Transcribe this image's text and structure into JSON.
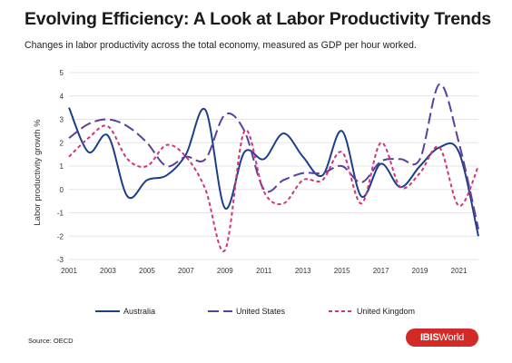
{
  "title": "Evolving Efficiency: A Look at Labor Productivity Trends",
  "subtitle": "Changes in labor productivity across the total economy, measured as GDP per hour worked.",
  "source": "Source: OECD",
  "logo": {
    "bold": "IBIS",
    "regular": "World"
  },
  "chart_data": {
    "type": "line",
    "ylabel": "Labor productivity growth %",
    "xlabel": "",
    "ylim": [
      -3,
      5
    ],
    "xlim": [
      2001,
      2022
    ],
    "y_ticks": [
      -3,
      -2,
      -1,
      0,
      1,
      2,
      3,
      4,
      5
    ],
    "x_ticks": [
      2001,
      2003,
      2005,
      2007,
      2009,
      2011,
      2013,
      2015,
      2017,
      2019,
      2021
    ],
    "grid": "horizontal",
    "legend_position": "bottom",
    "x": [
      2001,
      2002,
      2003,
      2004,
      2005,
      2006,
      2007,
      2008,
      2009,
      2010,
      2011,
      2012,
      2013,
      2014,
      2015,
      2016,
      2017,
      2018,
      2019,
      2020,
      2021,
      2022
    ],
    "series": [
      {
        "name": "Australia",
        "color": "#1b3f8b",
        "style": "solid",
        "values": [
          3.5,
          1.6,
          2.3,
          -0.3,
          0.4,
          0.6,
          1.5,
          3.4,
          -0.8,
          1.6,
          1.3,
          2.4,
          1.4,
          0.6,
          2.5,
          -0.3,
          1.1,
          0.1,
          1.0,
          1.8,
          1.6,
          -2.0
        ]
      },
      {
        "name": "United States",
        "color": "#5b3f9e",
        "style": "long-dash",
        "values": [
          2.2,
          2.8,
          3.0,
          2.7,
          2.0,
          1.0,
          1.4,
          1.3,
          3.2,
          2.5,
          0.0,
          0.4,
          0.7,
          0.7,
          1.0,
          0.3,
          1.2,
          1.3,
          1.3,
          4.5,
          2.0,
          -1.7
        ]
      },
      {
        "name": "United Kingdom",
        "color": "#d1347b",
        "style": "short-dash",
        "values": [
          1.4,
          2.2,
          2.7,
          1.3,
          1.0,
          1.9,
          1.4,
          0.0,
          -2.6,
          2.5,
          -0.1,
          -0.6,
          0.4,
          0.4,
          1.6,
          -0.6,
          2.0,
          0.1,
          0.7,
          1.8,
          -0.7,
          1.0
        ]
      }
    ]
  }
}
